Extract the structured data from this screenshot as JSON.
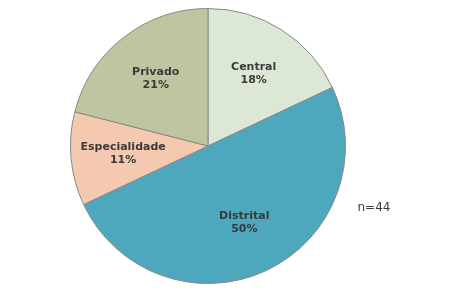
{
  "chart_data": {
    "type": "pie",
    "categories": [
      "Central",
      "Distrital",
      "Especialidade",
      "Privado"
    ],
    "values": [
      18,
      50,
      11,
      21
    ],
    "value_labels": [
      "18%",
      "50%",
      "11%",
      "21%"
    ],
    "colors": [
      "#dce8d5",
      "#4da8be",
      "#f5c9b0",
      "#bfc5a0"
    ],
    "data_labels": true,
    "annotation": "n=44"
  }
}
